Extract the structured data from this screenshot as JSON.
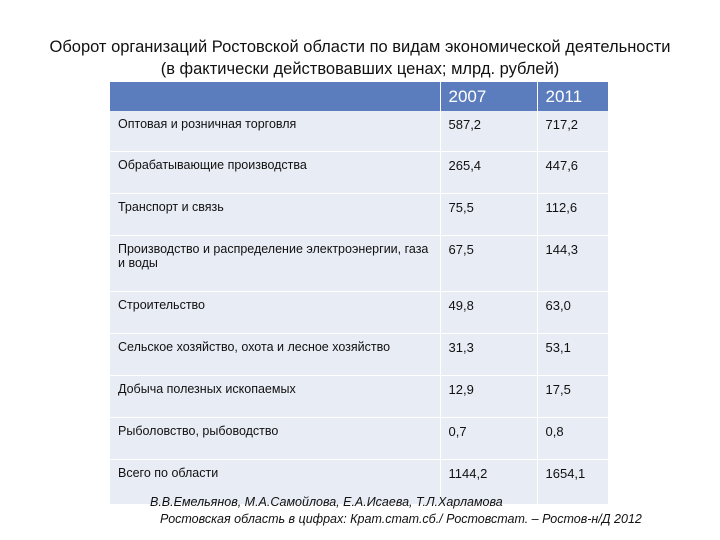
{
  "title": {
    "line1": "Оборот организаций Ростовской области по видам экономической деятельности",
    "line2": "(в фактически действовавших ценах; млрд. рублей)"
  },
  "table": {
    "headers": [
      "",
      "2007",
      "2011"
    ],
    "rows": [
      {
        "name": "Оптовая и розничная торговля",
        "v2007": "587,2",
        "v2011": "717,2"
      },
      {
        "name": "Обрабатывающие производства",
        "v2007": "265,4",
        "v2011": "447,6"
      },
      {
        "name": "Транспорт и связь",
        "v2007": "75,5",
        "v2011": "112,6"
      },
      {
        "name": "Производство и распределение электроэнергии, газа и воды",
        "v2007": "67,5",
        "v2011": "144,3"
      },
      {
        "name": "Строительство",
        "v2007": "49,8",
        "v2011": "63,0"
      },
      {
        "name": "Сельское хозяйство, охота и лесное хозяйство",
        "v2007": "31,3",
        "v2011": "53,1"
      },
      {
        "name": "Добыча полезных ископаемых",
        "v2007": "12,9",
        "v2011": "17,5"
      },
      {
        "name": "Рыболовство, рыбоводство",
        "v2007": "0,7",
        "v2011": "0,8"
      },
      {
        "name": "Всего по области",
        "v2007": "1144,2",
        "v2011": "1654,1"
      }
    ]
  },
  "source": {
    "authors": "В.В.Емельянов, М.А.Самойлова, Е.А.Исаева, Т.Л.Харламова",
    "citation": "Ростовская область в цифрах: Крат.стат.сб./ Ростовстат. – Ростов-н/Д  2012"
  },
  "colors": {
    "header_bg": "#5b7dbd",
    "row_bg": "#e8ecf4"
  }
}
